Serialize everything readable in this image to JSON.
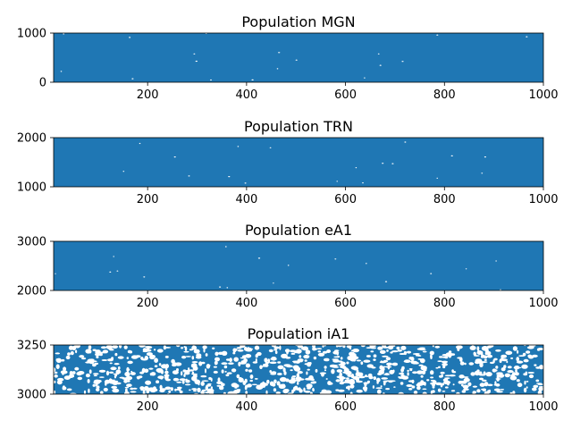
{
  "chart_data": [
    {
      "type": "scatter",
      "title": "Population MGN",
      "xlim": [
        10,
        1000
      ],
      "ylim": [
        0,
        1000
      ],
      "xticks": [
        200,
        400,
        600,
        800,
        1000
      ],
      "yticks": [
        0,
        1000
      ],
      "color": "#1f77b4",
      "density": "dense"
    },
    {
      "type": "scatter",
      "title": "Population TRN",
      "xlim": [
        10,
        1000
      ],
      "ylim": [
        1000,
        2000
      ],
      "xticks": [
        200,
        400,
        600,
        800,
        1000
      ],
      "yticks": [
        1000,
        2000
      ],
      "color": "#1f77b4",
      "density": "dense"
    },
    {
      "type": "scatter",
      "title": "Population eA1",
      "xlim": [
        10,
        1000
      ],
      "ylim": [
        2000,
        3000
      ],
      "xticks": [
        200,
        400,
        600,
        800,
        1000
      ],
      "yticks": [
        2000,
        3000
      ],
      "color": "#1f77b4",
      "density": "dense"
    },
    {
      "type": "scatter",
      "title": "Population iA1",
      "xlim": [
        10,
        1000
      ],
      "ylim": [
        3000,
        3250
      ],
      "xticks": [
        200,
        400,
        600,
        800,
        1000
      ],
      "yticks": [
        3000,
        3250
      ],
      "color": "#1f77b4",
      "density": "sparse"
    }
  ]
}
